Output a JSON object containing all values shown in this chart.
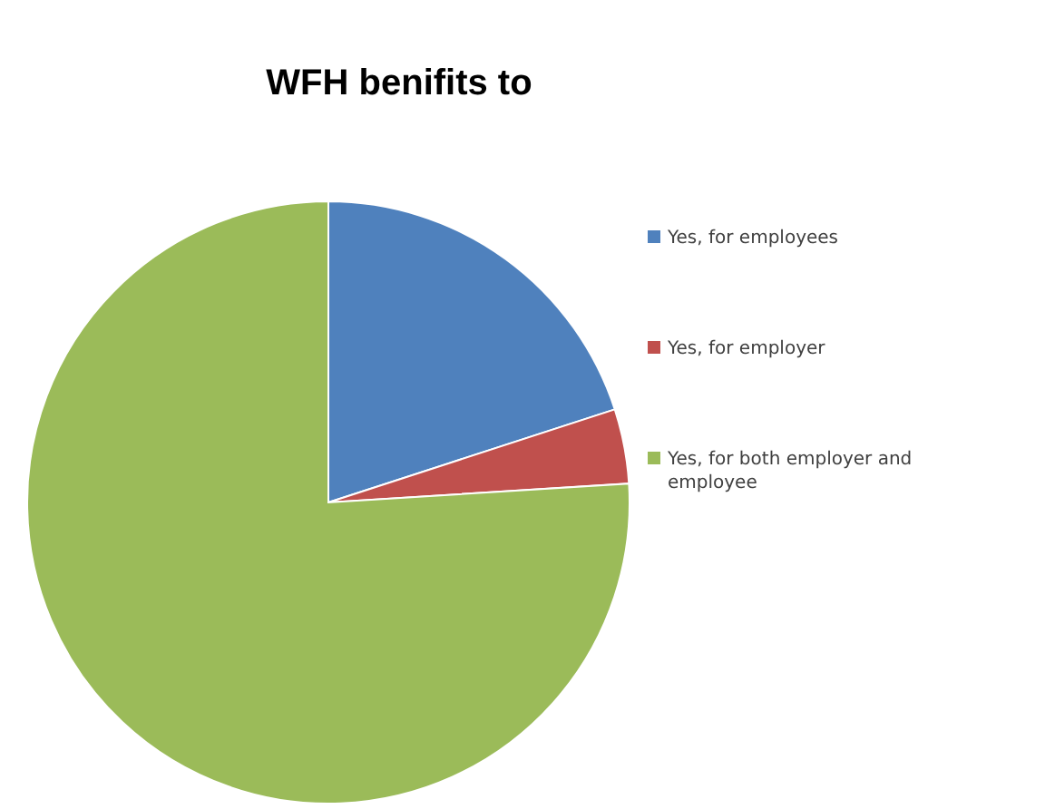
{
  "chart_data": {
    "type": "pie",
    "title": "WFH benifits to",
    "categories": [
      "Yes, for employees",
      "Yes, for employer",
      "Yes, for both employer and employee"
    ],
    "values": [
      20,
      4,
      76
    ],
    "colors": [
      "#4f81bd",
      "#c0504d",
      "#9bbb59"
    ],
    "legend": "right"
  }
}
